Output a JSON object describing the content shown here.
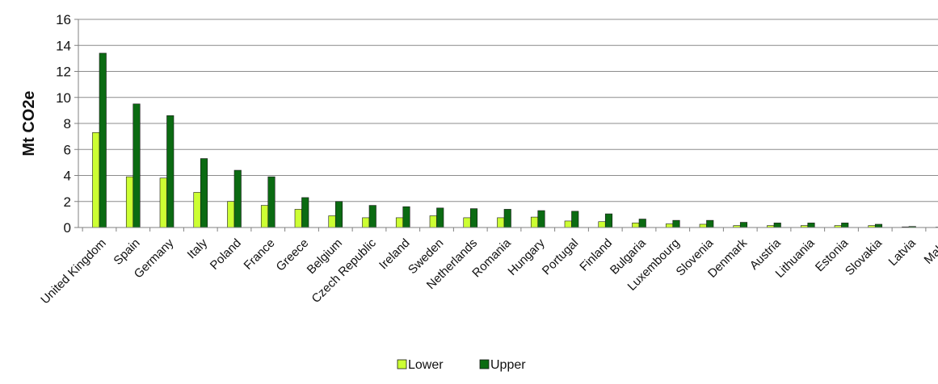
{
  "chart_data": {
    "type": "bar",
    "title": "",
    "xlabel": "",
    "ylabel": "Mt CO2e",
    "ylim": [
      0,
      16
    ],
    "yticks": [
      0,
      2,
      4,
      6,
      8,
      10,
      12,
      14,
      16
    ],
    "grid": true,
    "legend_position": "bottom",
    "categories": [
      "United Kingdom",
      "Spain",
      "Germany",
      "Italy",
      "Poland",
      "France",
      "Greece",
      "Belgium",
      "Czech Republic",
      "Ireland",
      "Sweden",
      "Netherlands",
      "Romania",
      "Hungary",
      "Portugal",
      "Finland",
      "Bulgaria",
      "Luxembourg",
      "Slovenia",
      "Denmark",
      "Austria",
      "Lithuania",
      "Estonia",
      "Slovakia",
      "Latvia",
      "Malta"
    ],
    "series": [
      {
        "name": "Lower",
        "color": "#ccff33",
        "values": [
          7.3,
          3.9,
          3.8,
          2.7,
          2.0,
          1.7,
          1.4,
          0.9,
          0.75,
          0.75,
          0.9,
          0.75,
          0.75,
          0.8,
          0.5,
          0.45,
          0.35,
          0.28,
          0.25,
          0.15,
          0.15,
          0.15,
          0.15,
          0.15,
          0.05,
          0.03
        ]
      },
      {
        "name": "Upper",
        "color": "#0b6b12",
        "values": [
          13.4,
          9.5,
          8.6,
          5.3,
          4.4,
          3.9,
          2.3,
          2.0,
          1.7,
          1.6,
          1.5,
          1.45,
          1.4,
          1.3,
          1.25,
          1.05,
          0.65,
          0.55,
          0.55,
          0.4,
          0.35,
          0.35,
          0.35,
          0.25,
          0.08,
          0.08
        ]
      }
    ]
  }
}
